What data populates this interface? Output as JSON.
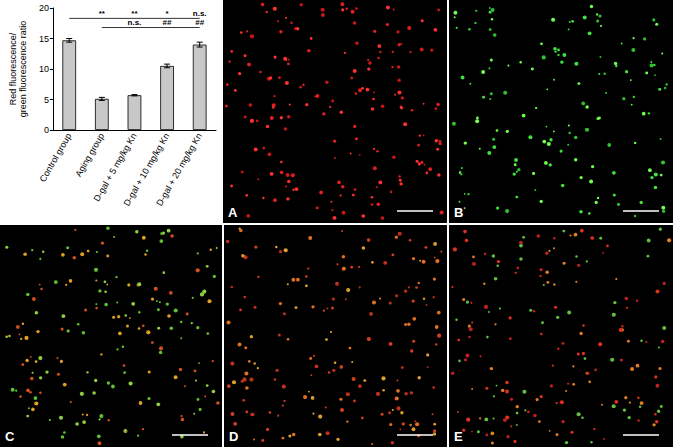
{
  "chart_data": {
    "type": "bar",
    "y_label": "Red fluorescence/\ngreen fluorescence ratio",
    "categories": [
      "Control group",
      "Aging group",
      "D-gal + 5 mg/kg Kn",
      "D-gal + 10 mg/kg Kn",
      "D-gal + 20 mg/kg Kn"
    ],
    "values": [
      14.7,
      5.1,
      5.7,
      10.5,
      14.0
    ],
    "errors": [
      0.3,
      0.25,
      0.1,
      0.3,
      0.4
    ],
    "color": "#c8c8c8",
    "ylim": [
      0,
      20
    ],
    "yticks": [
      0,
      5,
      10,
      15,
      20
    ],
    "grid": false,
    "significance": [
      {
        "reference": "Control group",
        "labels": [
          null,
          "**",
          "**",
          "*",
          "n.s."
        ]
      },
      {
        "reference": "Aging group",
        "labels": [
          null,
          null,
          "n.s.",
          "##",
          "##"
        ]
      }
    ]
  },
  "panels": {
    "labels": [
      "A",
      "B",
      "C",
      "D",
      "E"
    ]
  }
}
